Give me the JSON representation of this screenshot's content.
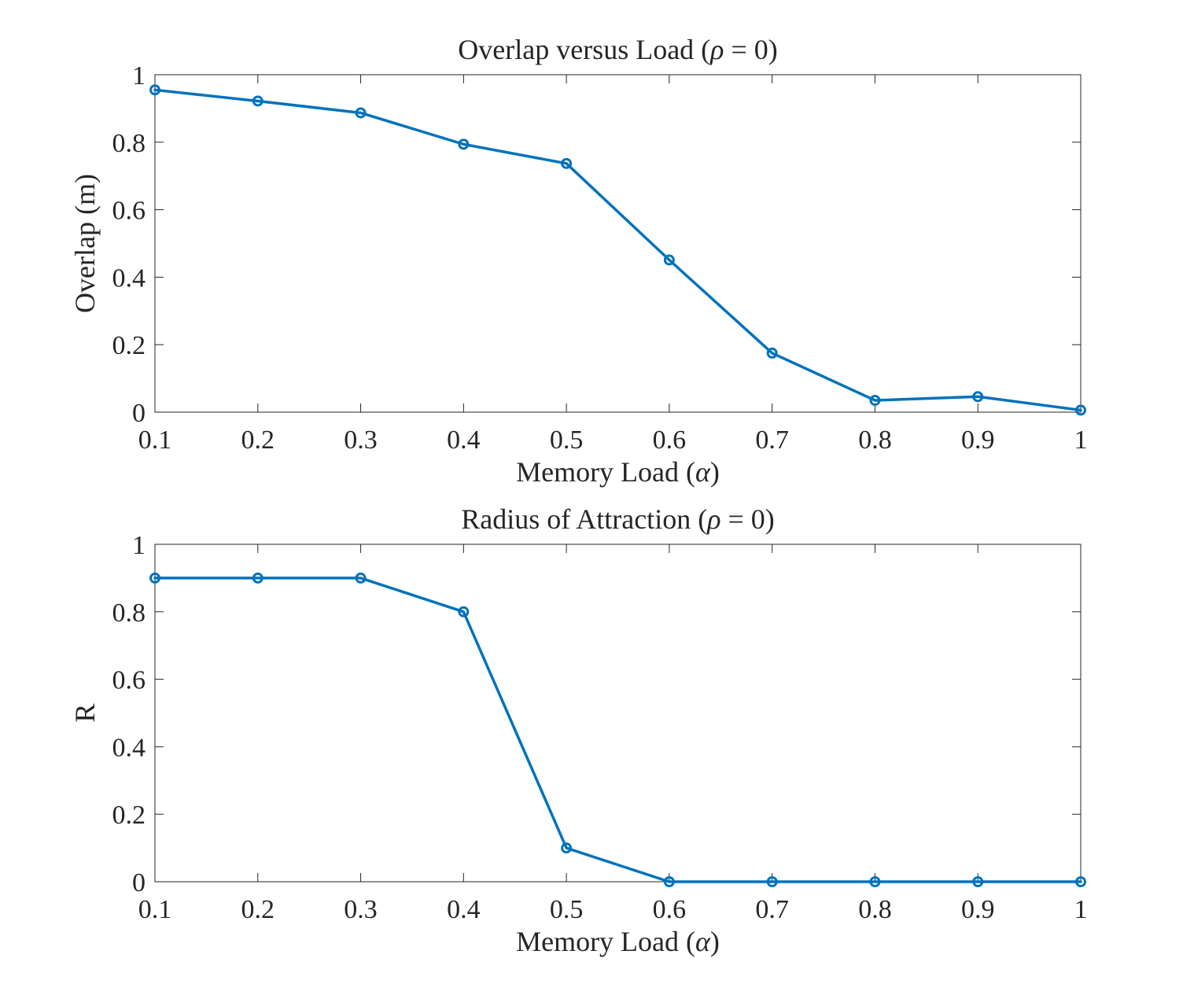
{
  "colors": {
    "series": "#0072BD",
    "axes": "#262626",
    "background": "#ffffff"
  },
  "chart_data": [
    {
      "type": "line",
      "title_parts": [
        "Overlap versus Load (",
        "ρ",
        " = 0)"
      ],
      "xlabel_parts": [
        "Memory Load (",
        "α",
        ")"
      ],
      "ylabel": "Overlap (m)",
      "xlim": [
        0.1,
        1
      ],
      "ylim": [
        0,
        1
      ],
      "xticks": [
        0.1,
        0.2,
        0.3,
        0.4,
        0.5,
        0.6,
        0.7,
        0.8,
        0.9,
        1
      ],
      "xtick_labels": [
        "0.1",
        "0.2",
        "0.3",
        "0.4",
        "0.5",
        "0.6",
        "0.7",
        "0.8",
        "0.9",
        "1"
      ],
      "yticks": [
        0,
        0.2,
        0.4,
        0.6,
        0.8,
        1
      ],
      "ytick_labels": [
        "0",
        "0.2",
        "0.4",
        "0.6",
        "0.8",
        "1"
      ],
      "grid": false,
      "marker": "circle",
      "x": [
        0.1,
        0.2,
        0.3,
        0.4,
        0.5,
        0.6,
        0.7,
        0.8,
        0.9,
        1
      ],
      "series": [
        {
          "values": [
            0.955,
            0.922,
            0.887,
            0.794,
            0.737,
            0.451,
            0.175,
            0.035,
            0.046,
            0.006
          ]
        }
      ]
    },
    {
      "type": "line",
      "title_parts": [
        "Radius of Attraction (",
        "ρ",
        " = 0)"
      ],
      "xlabel_parts": [
        "Memory Load (",
        "α",
        ")"
      ],
      "ylabel": "R",
      "xlim": [
        0.1,
        1
      ],
      "ylim": [
        0,
        1
      ],
      "xticks": [
        0.1,
        0.2,
        0.3,
        0.4,
        0.5,
        0.6,
        0.7,
        0.8,
        0.9,
        1
      ],
      "xtick_labels": [
        "0.1",
        "0.2",
        "0.3",
        "0.4",
        "0.5",
        "0.6",
        "0.7",
        "0.8",
        "0.9",
        "1"
      ],
      "yticks": [
        0,
        0.2,
        0.4,
        0.6,
        0.8,
        1
      ],
      "ytick_labels": [
        "0",
        "0.2",
        "0.4",
        "0.6",
        "0.8",
        "1"
      ],
      "grid": false,
      "marker": "circle",
      "x": [
        0.1,
        0.2,
        0.3,
        0.4,
        0.5,
        0.6,
        0.7,
        0.8,
        0.9,
        1
      ],
      "series": [
        {
          "values": [
            0.9,
            0.9,
            0.9,
            0.8,
            0.1,
            0,
            0,
            0,
            0,
            0
          ]
        }
      ]
    }
  ]
}
